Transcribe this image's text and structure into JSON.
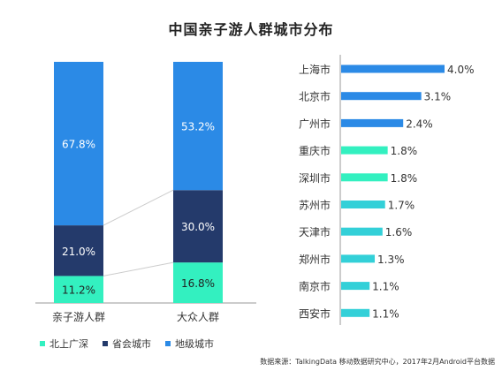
{
  "title": "中国亲子游人群城市分布",
  "source": "数据来源：TalkingData 移动数据研究中心，2017年2月Android平台数据",
  "chart_data": [
    {
      "type": "bar",
      "subtype": "stacked-100",
      "categories": [
        "亲子游人群",
        "大众人群"
      ],
      "series": [
        {
          "name": "北上广深",
          "color": "#33f0c0",
          "values": [
            11.2,
            16.8
          ],
          "labels": [
            "11.2%",
            "16.8%"
          ]
        },
        {
          "name": "省会城市",
          "color": "#243a6b",
          "values": [
            21.0,
            30.0
          ],
          "labels": [
            "21.0%",
            "30.0%"
          ]
        },
        {
          "name": "地级城市",
          "color": "#2b8ae6",
          "values": [
            67.8,
            53.2
          ],
          "labels": [
            "67.8%",
            "53.2%"
          ]
        }
      ],
      "ylim": [
        0,
        100
      ],
      "legend_position": "bottom"
    },
    {
      "type": "bar",
      "orientation": "horizontal",
      "categories": [
        "上海市",
        "北京市",
        "广州市",
        "重庆市",
        "深圳市",
        "苏州市",
        "天津市",
        "郑州市",
        "南京市",
        "西安市"
      ],
      "values": [
        4.0,
        3.1,
        2.4,
        1.8,
        1.8,
        1.7,
        1.6,
        1.3,
        1.1,
        1.1
      ],
      "labels": [
        "4.0%",
        "3.1%",
        "2.4%",
        "1.8%",
        "1.8%",
        "1.7%",
        "1.6%",
        "1.3%",
        "1.1%",
        "1.1%"
      ],
      "colors": [
        "#2b8ae6",
        "#2b8ae6",
        "#2b8ae6",
        "#33f0c0",
        "#33f0c0",
        "#33d0d8",
        "#33d0d8",
        "#33d0d8",
        "#33d0d8",
        "#33d0d8"
      ],
      "xlim": [
        0,
        4.0
      ]
    }
  ]
}
